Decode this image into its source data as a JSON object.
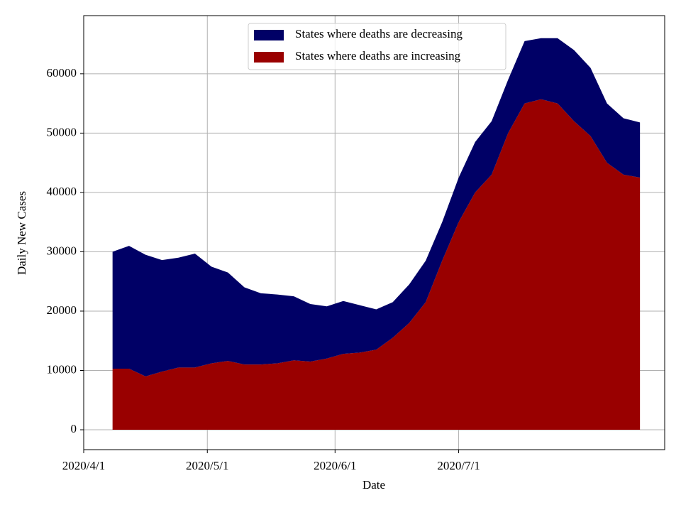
{
  "chart_data": {
    "type": "stacked_area",
    "xlabel": "Date",
    "ylabel": "Daily New Cases",
    "x": [
      "2020-04-08",
      "2020-04-12",
      "2020-04-16",
      "2020-04-20",
      "2020-04-24",
      "2020-04-28",
      "2020-05-02",
      "2020-05-06",
      "2020-05-10",
      "2020-05-14",
      "2020-05-18",
      "2020-05-22",
      "2020-05-26",
      "2020-05-30",
      "2020-06-03",
      "2020-06-07",
      "2020-06-11",
      "2020-06-15",
      "2020-06-19",
      "2020-06-23",
      "2020-06-27",
      "2020-07-01",
      "2020-07-05",
      "2020-07-09",
      "2020-07-13",
      "2020-07-17",
      "2020-07-21",
      "2020-07-25",
      "2020-07-29",
      "2020-08-02",
      "2020-08-06",
      "2020-08-10",
      "2020-08-14"
    ],
    "series": [
      {
        "name": "States where deaths are decreasing",
        "color": "#000066",
        "values": [
          19700,
          20700,
          20500,
          18800,
          18500,
          19200,
          16300,
          14900,
          13000,
          12000,
          11600,
          10800,
          9700,
          8800,
          8900,
          8000,
          6800,
          6000,
          6500,
          7000,
          6500,
          7500,
          8500,
          9000,
          9000,
          10500,
          10300,
          11000,
          12000,
          11500,
          10000,
          9500,
          9300
        ]
      },
      {
        "name": "States where deaths are increasing",
        "color": "#990000",
        "values": [
          10300,
          10300,
          9000,
          9800,
          10500,
          10500,
          11200,
          11600,
          11000,
          11000,
          11200,
          11700,
          11500,
          12000,
          12800,
          13000,
          13500,
          15500,
          18000,
          21500,
          28500,
          35000,
          40000,
          43000,
          50000,
          55000,
          55700,
          55000,
          52000,
          49500,
          45000,
          43000,
          42500
        ]
      }
    ],
    "xlim": [
      "2020-04-01",
      "2020-08-20"
    ],
    "xticks": [
      {
        "value": "2020-04-01",
        "label": "2020/4/1"
      },
      {
        "value": "2020-05-01",
        "label": "2020/5/1"
      },
      {
        "value": "2020-06-01",
        "label": "2020/6/1"
      },
      {
        "value": "2020-07-01",
        "label": "2020/7/1"
      }
    ],
    "ylim": [
      -3350,
      69800
    ],
    "yticks": [
      0,
      10000,
      20000,
      30000,
      40000,
      50000,
      60000
    ],
    "grid": true,
    "legend": "upper center"
  }
}
